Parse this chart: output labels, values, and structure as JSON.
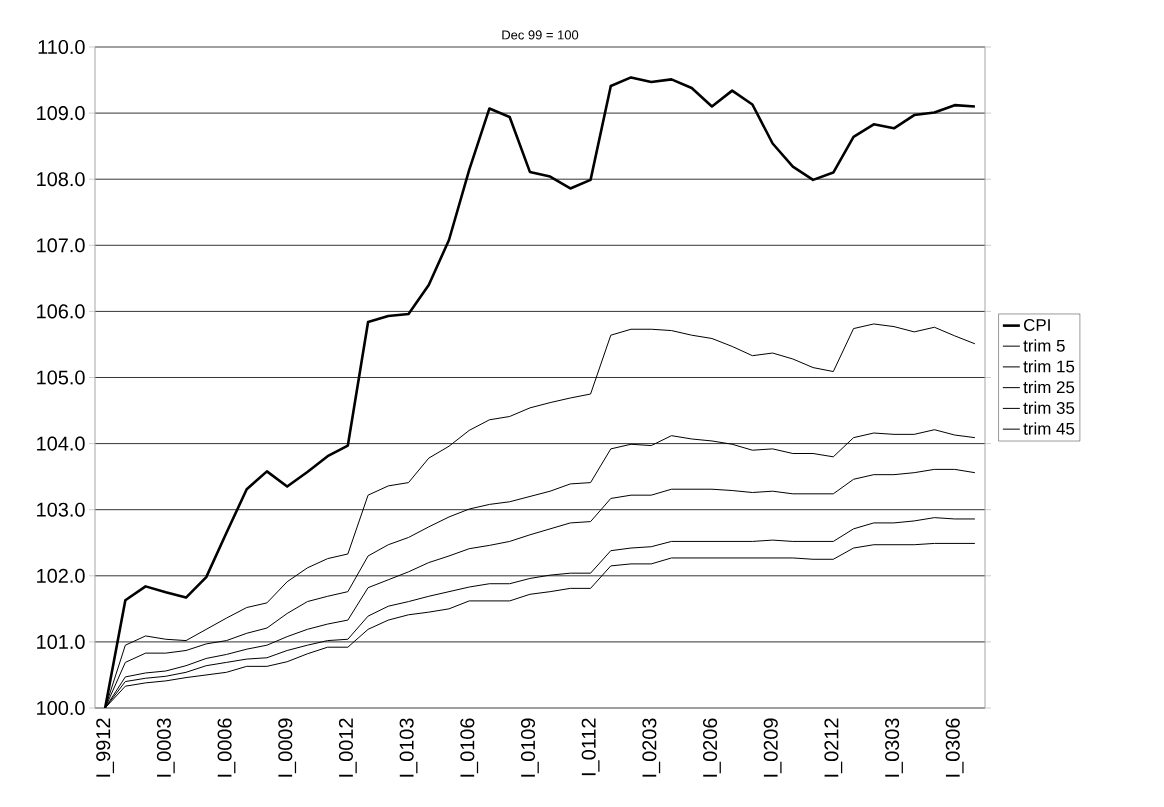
{
  "chart_data": {
    "type": "line",
    "title": "Dec 99 = 100",
    "categories": [
      "I_9912",
      null,
      null,
      "I_0003",
      null,
      null,
      "I_0006",
      null,
      null,
      "I_0009",
      null,
      null,
      "I_0012",
      null,
      null,
      "I_0103",
      null,
      null,
      "I_0106",
      null,
      null,
      "I_0109",
      null,
      null,
      "I_0112",
      null,
      null,
      "I_0203",
      null,
      null,
      "I_0206",
      null,
      null,
      "I_0209",
      null,
      null,
      "I_0212",
      null,
      null,
      "I_0303",
      null,
      null,
      "I_0306",
      null
    ],
    "series": [
      {
        "name": "CPI",
        "color": "#000000",
        "values": [
          100.0,
          101.63,
          101.84,
          101.75,
          101.67,
          101.98,
          102.65,
          103.31,
          103.58,
          103.35,
          103.57,
          103.81,
          103.97,
          105.84,
          105.93,
          105.96,
          106.4,
          107.08,
          108.14,
          109.07,
          108.94,
          108.11,
          108.04,
          107.86,
          107.99,
          109.41,
          109.54,
          109.47,
          109.51,
          109.38,
          109.1,
          109.34,
          109.13,
          108.54,
          108.19,
          107.99,
          108.1,
          108.64,
          108.83,
          108.77,
          108.97,
          109.01,
          109.12,
          109.1
        ]
      },
      {
        "name": "trim 5",
        "color": "#000000",
        "values": [
          100.0,
          100.95,
          101.09,
          101.04,
          101.02,
          101.19,
          101.36,
          101.52,
          101.59,
          101.91,
          102.12,
          102.26,
          102.33,
          103.22,
          103.36,
          103.41,
          103.78,
          103.96,
          104.2,
          104.36,
          104.41,
          104.54,
          104.62,
          104.69,
          104.75,
          105.64,
          105.73,
          105.73,
          105.71,
          105.64,
          105.59,
          105.47,
          105.33,
          105.37,
          105.28,
          105.15,
          105.09,
          105.74,
          105.81,
          105.77,
          105.69,
          105.76,
          105.63,
          105.51
        ]
      },
      {
        "name": "trim 15",
        "color": "#000000",
        "values": [
          100.0,
          100.69,
          100.83,
          100.83,
          100.87,
          100.97,
          101.02,
          101.13,
          101.21,
          101.43,
          101.61,
          101.69,
          101.76,
          102.3,
          102.47,
          102.58,
          102.74,
          102.89,
          103.01,
          103.08,
          103.12,
          103.2,
          103.28,
          103.39,
          103.41,
          103.92,
          103.99,
          103.97,
          104.12,
          104.07,
          104.04,
          103.99,
          103.9,
          103.92,
          103.85,
          103.85,
          103.8,
          104.09,
          104.16,
          104.14,
          104.14,
          104.21,
          104.13,
          104.09
        ]
      },
      {
        "name": "trim 25",
        "color": "#000000",
        "values": [
          100.0,
          100.47,
          100.53,
          100.56,
          100.64,
          100.75,
          100.81,
          100.89,
          100.95,
          101.08,
          101.19,
          101.27,
          101.33,
          101.82,
          101.94,
          102.06,
          102.2,
          102.3,
          102.41,
          102.46,
          102.52,
          102.62,
          102.71,
          102.8,
          102.82,
          103.17,
          103.22,
          103.22,
          103.31,
          103.31,
          103.31,
          103.29,
          103.26,
          103.28,
          103.24,
          103.24,
          103.24,
          103.46,
          103.53,
          103.53,
          103.56,
          103.61,
          103.61,
          103.56
        ]
      },
      {
        "name": "trim 35",
        "color": "#000000",
        "values": [
          100.0,
          100.4,
          100.45,
          100.48,
          100.54,
          100.64,
          100.69,
          100.74,
          100.76,
          100.87,
          100.95,
          101.02,
          101.04,
          101.39,
          101.54,
          101.61,
          101.69,
          101.76,
          101.83,
          101.88,
          101.88,
          101.96,
          102.01,
          102.04,
          102.04,
          102.38,
          102.42,
          102.44,
          102.52,
          102.52,
          102.52,
          102.52,
          102.52,
          102.54,
          102.52,
          102.52,
          102.52,
          102.71,
          102.8,
          102.8,
          102.83,
          102.88,
          102.86,
          102.86
        ]
      },
      {
        "name": "trim 45",
        "color": "#000000",
        "values": [
          100.0,
          100.33,
          100.38,
          100.41,
          100.46,
          100.5,
          100.54,
          100.63,
          100.63,
          100.7,
          100.82,
          100.92,
          100.92,
          101.19,
          101.33,
          101.41,
          101.45,
          101.5,
          101.62,
          101.62,
          101.62,
          101.72,
          101.76,
          101.81,
          101.81,
          102.15,
          102.18,
          102.18,
          102.27,
          102.27,
          102.27,
          102.27,
          102.27,
          102.27,
          102.27,
          102.25,
          102.25,
          102.42,
          102.47,
          102.47,
          102.47,
          102.49,
          102.49,
          102.49
        ]
      }
    ],
    "ylim": [
      100,
      110
    ],
    "yticks": [
      {
        "value": 100,
        "label": "100.0"
      },
      {
        "value": 101,
        "label": "101.0"
      },
      {
        "value": 102,
        "label": "102.0"
      },
      {
        "value": 103,
        "label": "103.0"
      },
      {
        "value": 104,
        "label": "104.0"
      },
      {
        "value": 105,
        "label": "105.0"
      },
      {
        "value": 106,
        "label": "106.0"
      },
      {
        "value": 107,
        "label": "107.0"
      },
      {
        "value": 108,
        "label": "108.0"
      },
      {
        "value": 109,
        "label": "109.0"
      },
      {
        "value": 110,
        "label": "110.0"
      }
    ],
    "grid": "y",
    "legend": "right",
    "marker": "none",
    "line_style": "solid"
  }
}
